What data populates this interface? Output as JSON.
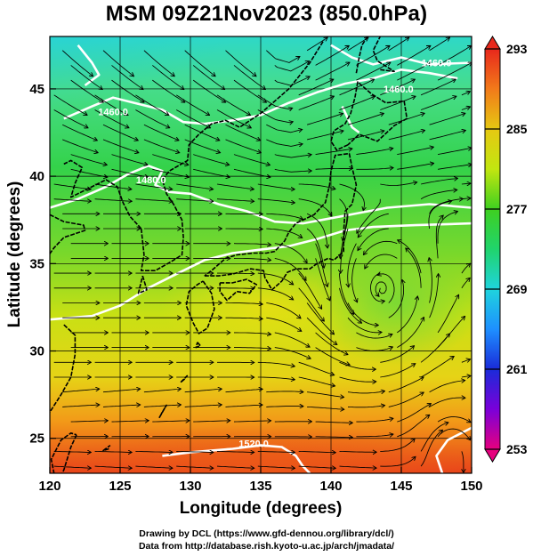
{
  "title": "MSM 09Z21Nov2023 (850.0hPa)",
  "map": {
    "lon_range": [
      120,
      150
    ],
    "lat_range": [
      23,
      48
    ],
    "x_ticks": [
      "120",
      "125",
      "130",
      "135",
      "140",
      "145",
      "150"
    ],
    "y_ticks": [
      "25",
      "30",
      "35",
      "40",
      "45"
    ],
    "x_label": "Longitude (degrees)",
    "y_label": "Latitude  (degrees)",
    "grid_lines": true,
    "contour_color": "#ffffff",
    "contour_labels": [
      "1460.0",
      "1460.0",
      "1460.0",
      "1480.0",
      "1520.0"
    ]
  },
  "colorbar": {
    "ticks": [
      "293",
      "285",
      "277",
      "269",
      "261",
      "253"
    ],
    "range": [
      253,
      293
    ],
    "colors": [
      "#e6007e",
      "#7a00d9",
      "#1a2bd9",
      "#1e90ff",
      "#1fd4dd",
      "#20d46c",
      "#3fd020",
      "#c2e610",
      "#e6c812",
      "#f27a1a",
      "#e8281c"
    ]
  },
  "credits": {
    "line1": "Drawing by DCL (https://www.gfd-dennou.org/library/dcl/)",
    "line2": "Data from http://database.rish.kyoto-u.ac.jp/arch/jmadata/"
  }
}
